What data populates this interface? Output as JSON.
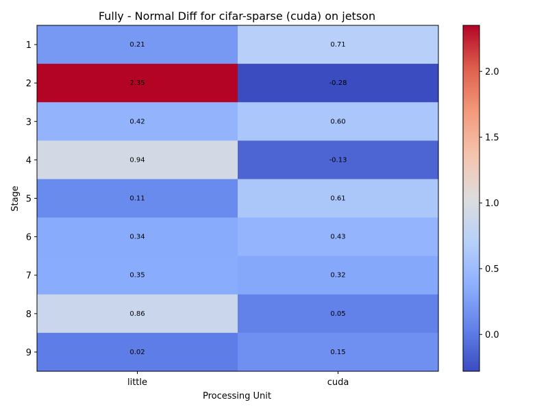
{
  "chart_data": {
    "type": "heatmap",
    "title": "Fully - Normal Diff for cifar-sparse (cuda) on jetson",
    "xlabel": "Processing Unit",
    "ylabel": "Stage",
    "x_categories": [
      "little",
      "cuda"
    ],
    "y_categories": [
      "1",
      "2",
      "3",
      "4",
      "5",
      "6",
      "7",
      "8",
      "9"
    ],
    "values": [
      [
        0.21,
        0.71
      ],
      [
        2.35,
        -0.28
      ],
      [
        0.42,
        0.6
      ],
      [
        0.94,
        -0.13
      ],
      [
        0.11,
        0.61
      ],
      [
        0.34,
        0.43
      ],
      [
        0.35,
        0.32
      ],
      [
        0.86,
        0.05
      ],
      [
        0.02,
        0.15
      ]
    ],
    "cell_labels": [
      [
        "0.21",
        "0.71"
      ],
      [
        "2.35",
        "-0.28"
      ],
      [
        "0.42",
        "0.60"
      ],
      [
        "0.94",
        "-0.13"
      ],
      [
        "0.11",
        "0.61"
      ],
      [
        "0.34",
        "0.43"
      ],
      [
        "0.35",
        "0.32"
      ],
      [
        "0.86",
        "0.05"
      ],
      [
        "0.02",
        "0.15"
      ]
    ],
    "colormap": "coolwarm",
    "vmin": -0.28,
    "vmax": 2.35,
    "colorbar_ticks": [
      0.0,
      0.5,
      1.0,
      1.5,
      2.0
    ],
    "colorbar_tick_labels": [
      "0.0",
      "0.5",
      "1.0",
      "1.5",
      "2.0"
    ],
    "grid": false,
    "legend": "colorbar-right"
  }
}
